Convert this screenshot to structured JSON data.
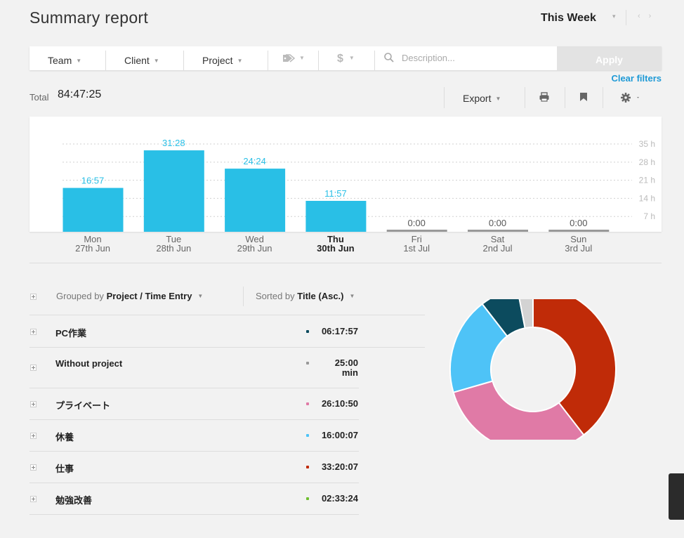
{
  "header": {
    "title": "Summary report",
    "period": "This Week"
  },
  "filters": {
    "team": "Team",
    "client": "Client",
    "project": "Project",
    "tag_icon": "tag-icon",
    "billable_icon": "$",
    "search_icon": "search-icon",
    "description_placeholder": "Description...",
    "apply": "Apply",
    "clear": "Clear filters"
  },
  "toolbar": {
    "total_label": "Total",
    "total_value": "84:47:25",
    "export": "Export",
    "print_icon": "print-icon",
    "bookmark_icon": "bookmark-icon",
    "settings_icon": "gear-icon"
  },
  "chart_data": {
    "type": "bar",
    "categories": [
      "Mon 27th Jun",
      "Tue 28th Jun",
      "Wed 29th Jun",
      "Thu 30th Jun",
      "Fri 1st Jul",
      "Sat 2nd Jul",
      "Sun 3rd Jul"
    ],
    "day_labels": [
      "Mon",
      "Tue",
      "Wed",
      "Thu",
      "Fri",
      "Sat",
      "Sun"
    ],
    "date_labels": [
      "27th Jun",
      "28th Jun",
      "29th Jun",
      "30th Jun",
      "1st Jul",
      "2nd Jul",
      "3rd Jul"
    ],
    "values": [
      16.95,
      31.47,
      24.4,
      11.95,
      0,
      0,
      0
    ],
    "data_labels": [
      "16:57",
      "31:28",
      "24:24",
      "11:57",
      "0:00",
      "0:00",
      "0:00"
    ],
    "y_ticks": [
      7,
      14,
      21,
      28,
      35
    ],
    "y_tick_labels": [
      "7 h",
      "14 h",
      "21 h",
      "28 h",
      "35 h"
    ],
    "ylim": [
      0,
      38
    ],
    "bold_category_index": 3,
    "colors": {
      "bar": "#29bfe6",
      "empty": "#999999",
      "label": "#29bfe6",
      "empty_label": "#555555"
    }
  },
  "grouping": {
    "grouped_prefix": "Grouped by",
    "grouped_value": "Project / Time Entry",
    "sorted_prefix": "Sorted by",
    "sorted_value": "Title (Asc.)"
  },
  "projects": [
    {
      "name": "PC作業",
      "duration": "06:17:57",
      "color": "#0c4b5e",
      "hours": 6.3
    },
    {
      "name": "Without project",
      "duration": "25:00\nmin",
      "color": "#999999",
      "hours": 0.42
    },
    {
      "name": "プライベート",
      "duration": "26:10:50",
      "color": "#e07aa6",
      "hours": 26.18
    },
    {
      "name": "休養",
      "duration": "16:00:07",
      "color": "#4ec3f7",
      "hours": 16.0
    },
    {
      "name": "仕事",
      "duration": "33:20:07",
      "color": "#c02b08",
      "hours": 33.34
    },
    {
      "name": "勉強改善",
      "duration": "02:33:24",
      "color": "#6fbf2f",
      "hours": 2.56
    }
  ],
  "donut_data": {
    "type": "pie",
    "order": [
      "仕事",
      "プライベート",
      "休養",
      "PC作業",
      "勉強改善"
    ],
    "colors": [
      "#c02b08",
      "#e07aa6",
      "#4ec3f7",
      "#0c4b5e",
      "#d3d3d3"
    ]
  }
}
